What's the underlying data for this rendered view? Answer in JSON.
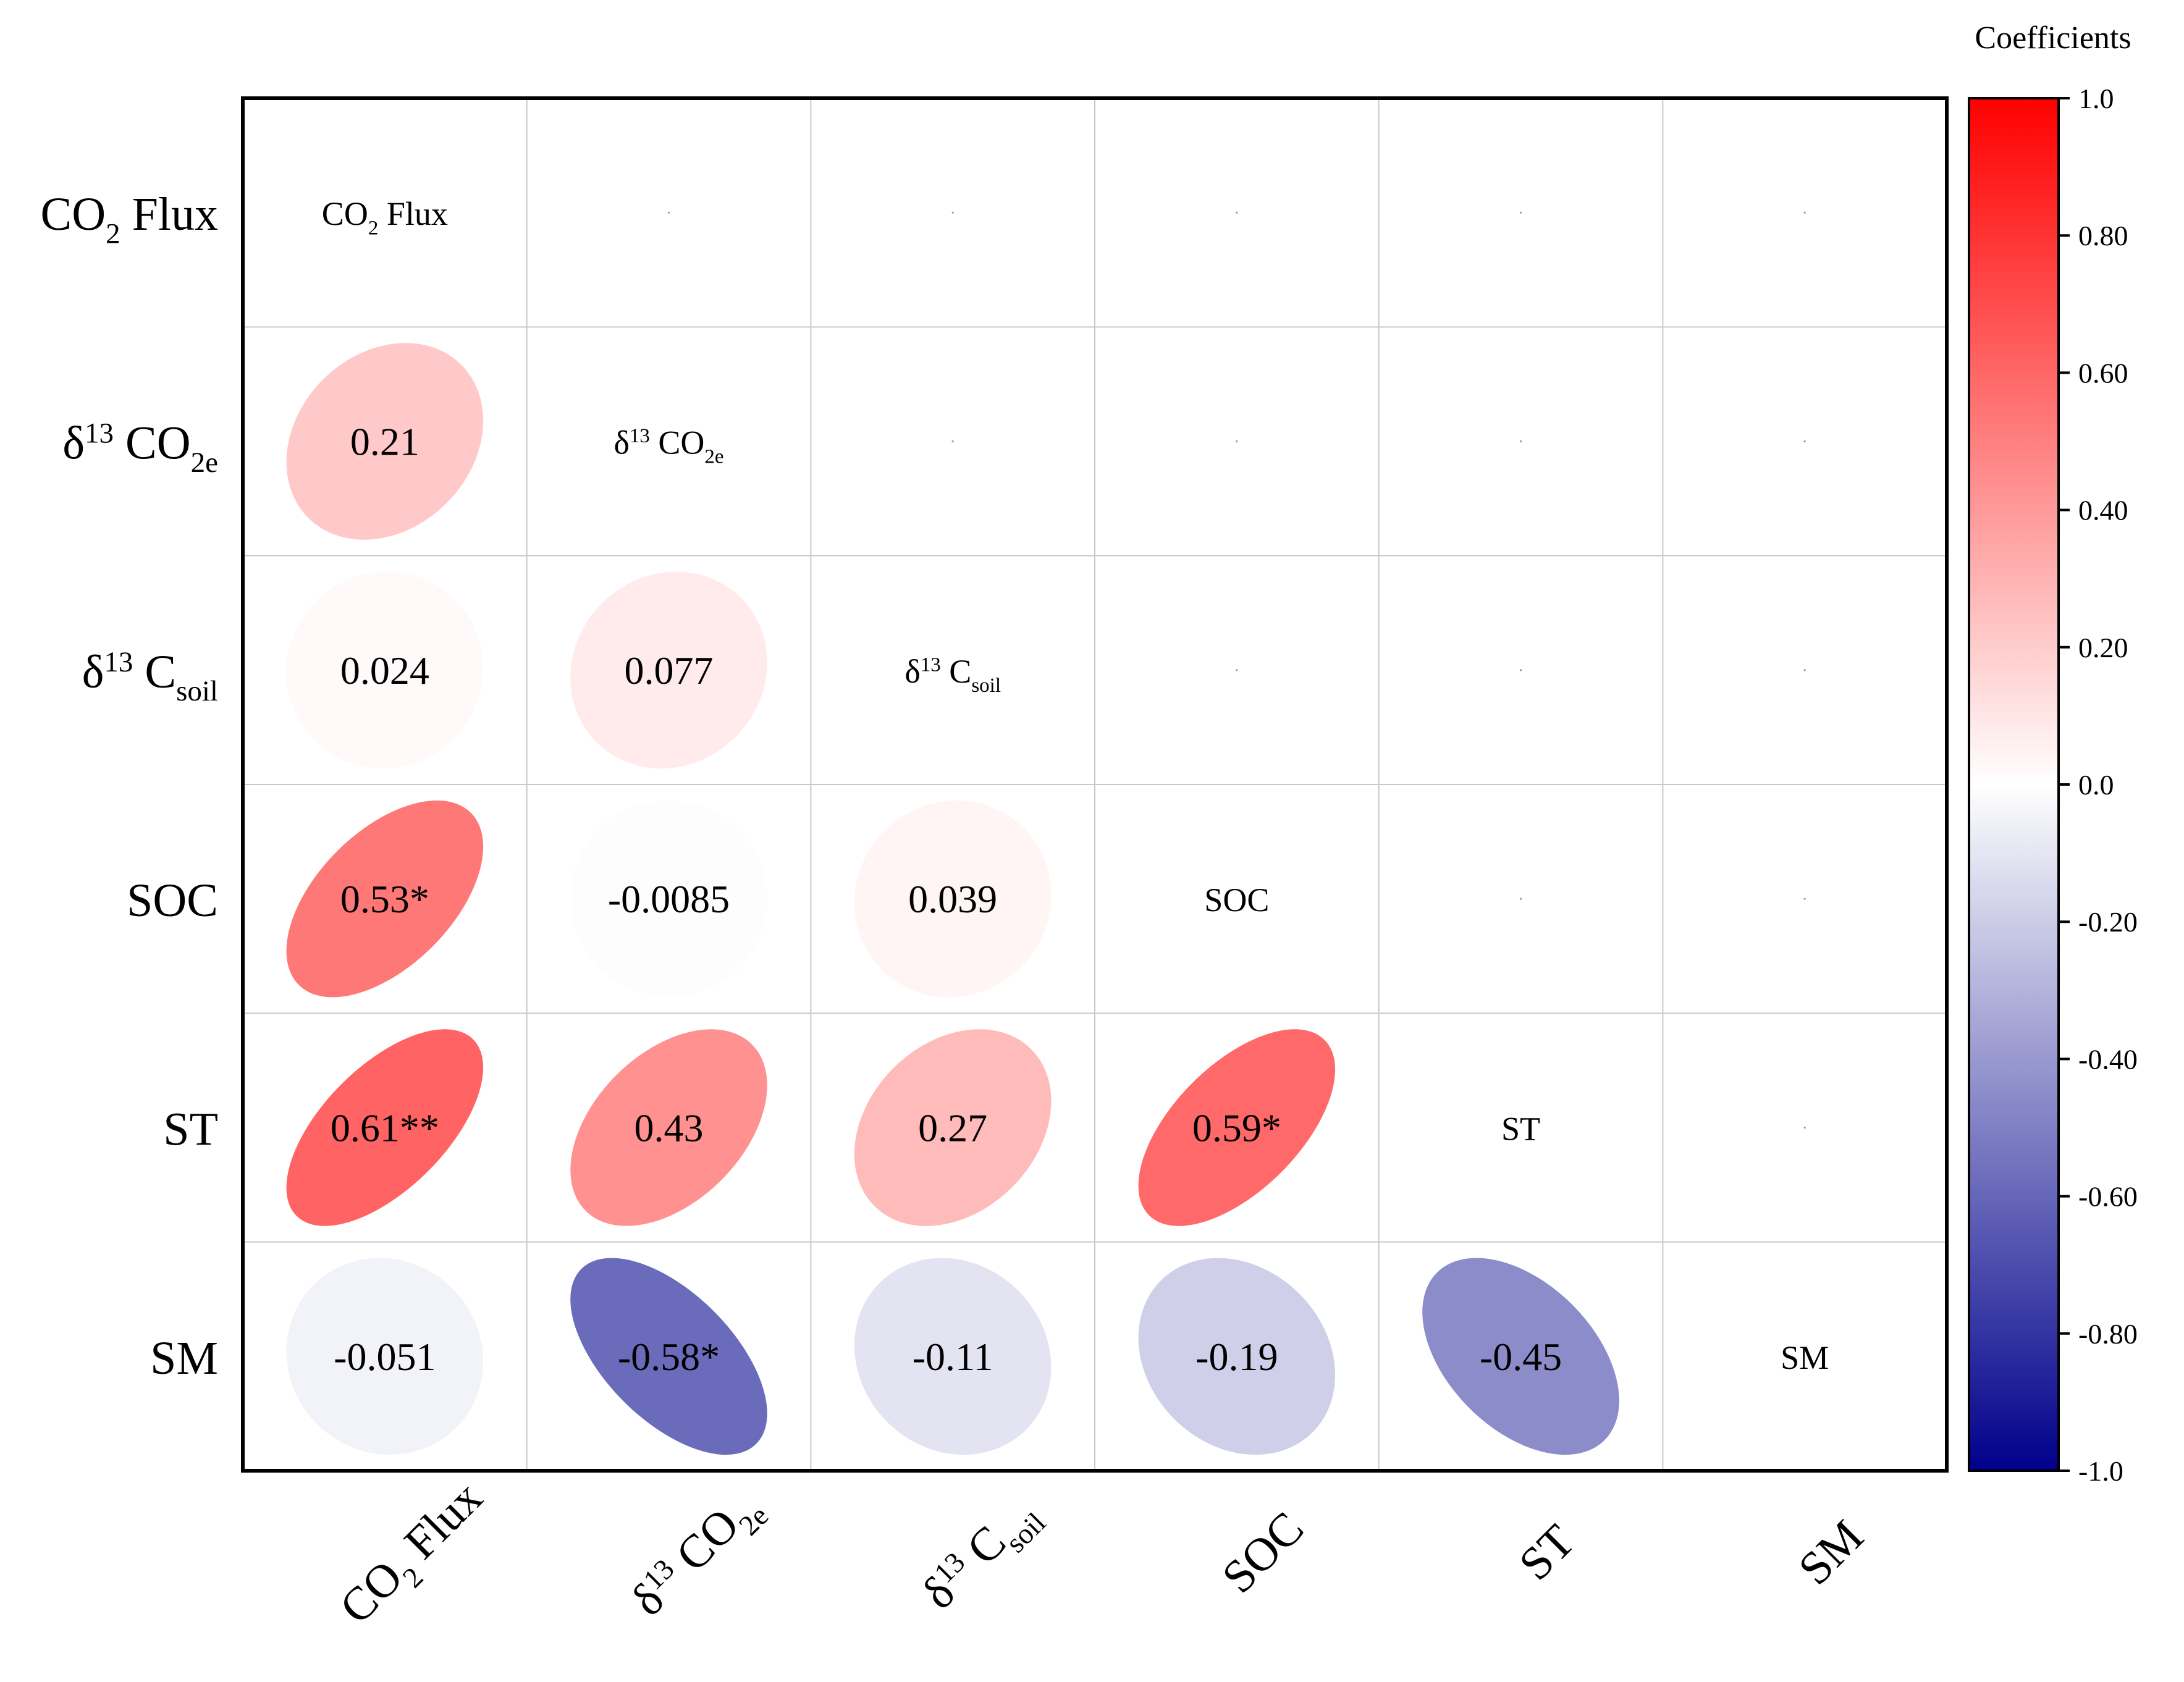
{
  "chart_data": {
    "type": "heatmap",
    "variables": [
      {
        "key": "co2flux",
        "main": "CO",
        "sub": "2",
        "tail": " Flux"
      },
      {
        "key": "d13co2e",
        "main": "δ",
        "sup": "13",
        "main2": " CO",
        "sub": "2e"
      },
      {
        "key": "d13csoil",
        "main": "δ",
        "sup": "13",
        "main2": " C",
        "sub": "soil"
      },
      {
        "key": "soc",
        "main": "SOC"
      },
      {
        "key": "st",
        "main": "ST"
      },
      {
        "key": "sm",
        "main": "SM"
      }
    ],
    "correlations": [
      {
        "row": 1,
        "col": 0,
        "value": 0.21,
        "label": "0.21"
      },
      {
        "row": 2,
        "col": 0,
        "value": 0.024,
        "label": "0.024"
      },
      {
        "row": 2,
        "col": 1,
        "value": 0.077,
        "label": "0.077"
      },
      {
        "row": 3,
        "col": 0,
        "value": 0.53,
        "label": "0.53*"
      },
      {
        "row": 3,
        "col": 1,
        "value": -0.0085,
        "label": "-0.0085"
      },
      {
        "row": 3,
        "col": 2,
        "value": 0.039,
        "label": "0.039"
      },
      {
        "row": 4,
        "col": 0,
        "value": 0.61,
        "label": "0.61**"
      },
      {
        "row": 4,
        "col": 1,
        "value": 0.43,
        "label": "0.43"
      },
      {
        "row": 4,
        "col": 2,
        "value": 0.27,
        "label": "0.27"
      },
      {
        "row": 4,
        "col": 3,
        "value": 0.59,
        "label": "0.59*"
      },
      {
        "row": 5,
        "col": 0,
        "value": -0.051,
        "label": "-0.051"
      },
      {
        "row": 5,
        "col": 1,
        "value": -0.58,
        "label": "-0.58*"
      },
      {
        "row": 5,
        "col": 2,
        "value": -0.11,
        "label": "-0.11"
      },
      {
        "row": 5,
        "col": 3,
        "value": -0.19,
        "label": "-0.19"
      },
      {
        "row": 5,
        "col": 4,
        "value": -0.45,
        "label": "-0.45"
      }
    ],
    "colorbar": {
      "title": "Coefficients",
      "range": [
        -1.0,
        1.0
      ],
      "ticks": [
        {
          "value": 1.0,
          "label": "1.0"
        },
        {
          "value": 0.8,
          "label": "0.80"
        },
        {
          "value": 0.6,
          "label": "0.60"
        },
        {
          "value": 0.4,
          "label": "0.40"
        },
        {
          "value": 0.2,
          "label": "0.20"
        },
        {
          "value": 0.0,
          "label": "0.0"
        },
        {
          "value": -0.2,
          "label": "-0.20"
        },
        {
          "value": -0.4,
          "label": "-0.40"
        },
        {
          "value": -0.6,
          "label": "-0.60"
        },
        {
          "value": -0.8,
          "label": "-0.80"
        },
        {
          "value": -1.0,
          "label": "-1.0"
        }
      ],
      "colors": {
        "positive": "#ff0000",
        "zero": "#ffffff",
        "negative": "#00008b"
      }
    }
  }
}
